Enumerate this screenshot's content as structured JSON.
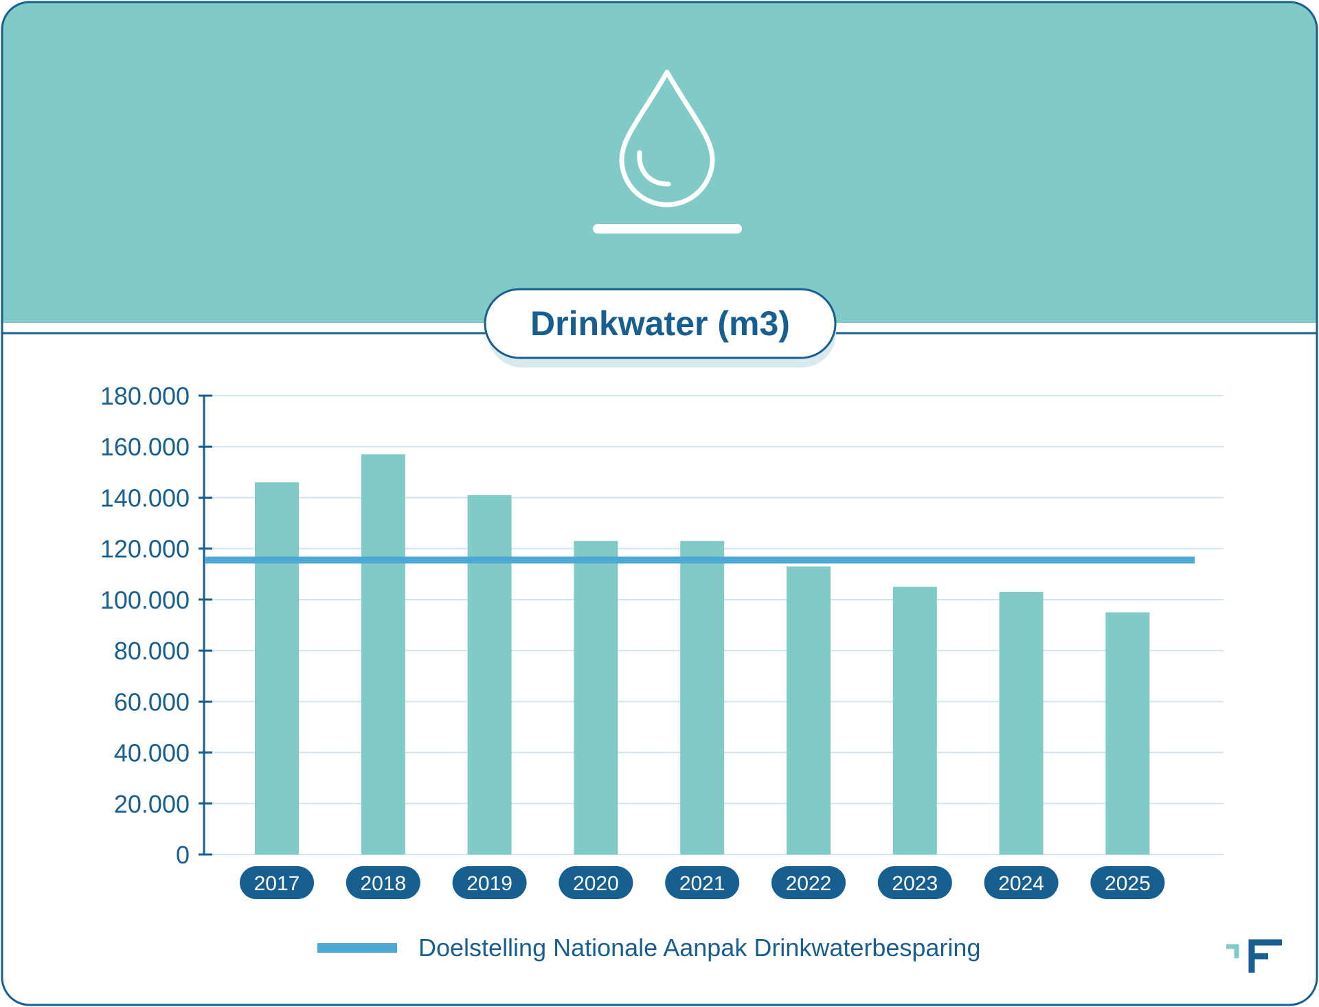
{
  "colors": {
    "header_bg": "#82CAC8",
    "bar": "#82CAC8",
    "target_line": "#4BA9D4",
    "axis": "#175E91",
    "text": "#175E91",
    "pill": "#175E91",
    "grid": "#CFE6EE"
  },
  "header": {
    "icon": "water-drop-icon"
  },
  "logo": {
    "icon": "brand-logo-icon"
  },
  "legend": {
    "target_label": "Doelstelling Nationale Aanpak Drinkwaterbesparing"
  },
  "chart_data": {
    "type": "bar",
    "title": "Drinkwater (m3)",
    "categories": [
      "2017",
      "2018",
      "2019",
      "2020",
      "2021",
      "2022",
      "2023",
      "2024",
      "2025"
    ],
    "values": [
      146000,
      157000,
      141000,
      123000,
      123000,
      113000,
      105000,
      103000,
      95000
    ],
    "target": {
      "name": "Doelstelling Nationale Aanpak Drinkwaterbesparing",
      "value": 115500
    },
    "yticks": [
      "0",
      "20.000",
      "40.000",
      "60.000",
      "80.000",
      "100.000",
      "120.000",
      "140.000",
      "160.000",
      "180.000"
    ],
    "ylim": [
      0,
      180000
    ],
    "grid": true,
    "legend_position": "bottom"
  }
}
